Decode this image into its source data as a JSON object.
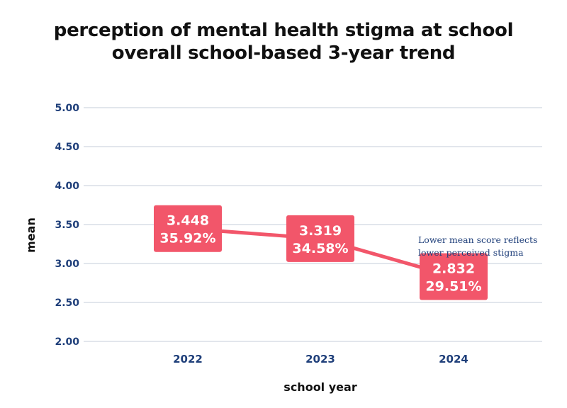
{
  "colors": {
    "axis_text": "#1f3f7a",
    "grid": "#d9dde6",
    "series": "#f2566a",
    "label_text": "#ffffff"
  },
  "chart_data": {
    "type": "line",
    "title": "perception of mental health stigma at school",
    "subtitle": "overall school-based 3-year trend",
    "xlabel": "school year",
    "ylabel": "mean",
    "categories": [
      "2022",
      "2023",
      "2024"
    ],
    "series": [
      {
        "values": [
          3.448,
          3.319,
          2.832
        ],
        "value_labels": [
          "3.448",
          "3.319",
          "2.832"
        ],
        "percent_labels": [
          "35.92%",
          "34.58%",
          "29.51%"
        ]
      }
    ],
    "ylim": [
      2.0,
      5.0
    ],
    "yticks": [
      "2.00",
      "2.50",
      "3.00",
      "3.50",
      "4.00",
      "4.50",
      "5.00"
    ],
    "grid": true,
    "legend": "none",
    "annotation": [
      "Lower mean score reflects",
      "lower perceived stigma"
    ]
  }
}
